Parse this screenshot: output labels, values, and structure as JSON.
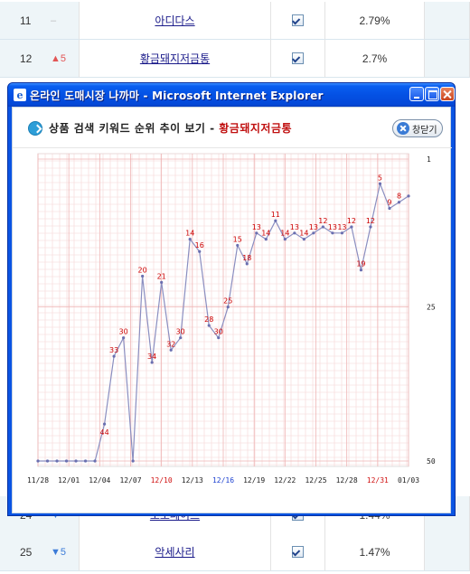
{
  "rank_rows_top": [
    {
      "rank": "11",
      "change": "–",
      "change_dir": "same",
      "keyword": "아디다스",
      "percent": "2.79%"
    },
    {
      "rank": "12",
      "change": "▲5",
      "change_dir": "up",
      "keyword": "황금돼지저금통",
      "percent": "2.7%"
    }
  ],
  "rank_rows_bottom": [
    {
      "rank": "24",
      "change": "▼",
      "change_dir": "down",
      "keyword": "도토페이트",
      "percent": "1.44%"
    },
    {
      "rank": "25",
      "change": "▼5",
      "change_dir": "down",
      "keyword": "악세사리",
      "percent": "1.47%"
    }
  ],
  "window": {
    "title": "온라인 도매시장 나까마 - Microsoft Internet Explorer"
  },
  "popup": {
    "title_prefix": "상품 검색 키워드 순위 추이 보기 - ",
    "title_keyword": "황금돼지저금통",
    "close_label": "창닫기"
  },
  "chart_data": {
    "type": "line",
    "title": "상품 검색 키워드 순위 추이 보기 - 황금돼지저금통",
    "y_axis_inverted": true,
    "ylim": [
      1,
      50
    ],
    "y_ticks": [
      "1",
      "25",
      "50"
    ],
    "x_ticks": [
      {
        "label": "11/28",
        "color": "#222222"
      },
      {
        "label": "12/01",
        "color": "#222222"
      },
      {
        "label": "12/04",
        "color": "#222222"
      },
      {
        "label": "12/07",
        "color": "#222222"
      },
      {
        "label": "12/10",
        "color": "#d01010"
      },
      {
        "label": "12/13",
        "color": "#222222"
      },
      {
        "label": "12/16",
        "color": "#1a3fd0"
      },
      {
        "label": "12/19",
        "color": "#222222"
      },
      {
        "label": "12/22",
        "color": "#222222"
      },
      {
        "label": "12/25",
        "color": "#222222"
      },
      {
        "label": "12/28",
        "color": "#222222"
      },
      {
        "label": "12/31",
        "color": "#d01010"
      },
      {
        "label": "01/03",
        "color": "#222222"
      }
    ],
    "grid": true,
    "series_color": "#8a8ec0",
    "points": [
      {
        "x": 0,
        "y": 50,
        "label": ""
      },
      {
        "x": 1,
        "y": 50,
        "label": ""
      },
      {
        "x": 2,
        "y": 50,
        "label": ""
      },
      {
        "x": 3,
        "y": 50,
        "label": ""
      },
      {
        "x": 4,
        "y": 50,
        "label": ""
      },
      {
        "x": 5,
        "y": 50,
        "label": ""
      },
      {
        "x": 6,
        "y": 50,
        "label": ""
      },
      {
        "x": 7,
        "y": 44,
        "label": "44"
      },
      {
        "x": 8,
        "y": 33,
        "label": "33"
      },
      {
        "x": 9,
        "y": 30,
        "label": "30"
      },
      {
        "x": 10,
        "y": 50,
        "label": ""
      },
      {
        "x": 11,
        "y": 20,
        "label": "20"
      },
      {
        "x": 12,
        "y": 34,
        "label": "34"
      },
      {
        "x": 13,
        "y": 21,
        "label": "21"
      },
      {
        "x": 14,
        "y": 32,
        "label": "32"
      },
      {
        "x": 15,
        "y": 30,
        "label": "30"
      },
      {
        "x": 16,
        "y": 14,
        "label": "14"
      },
      {
        "x": 17,
        "y": 16,
        "label": "16"
      },
      {
        "x": 18,
        "y": 28,
        "label": "28"
      },
      {
        "x": 19,
        "y": 30,
        "label": "30"
      },
      {
        "x": 20,
        "y": 25,
        "label": "25"
      },
      {
        "x": 21,
        "y": 15,
        "label": "15"
      },
      {
        "x": 22,
        "y": 18,
        "label": "18"
      },
      {
        "x": 23,
        "y": 13,
        "label": "13"
      },
      {
        "x": 24,
        "y": 14,
        "label": "14"
      },
      {
        "x": 25,
        "y": 11,
        "label": "11"
      },
      {
        "x": 26,
        "y": 14,
        "label": "14"
      },
      {
        "x": 27,
        "y": 13,
        "label": "13"
      },
      {
        "x": 28,
        "y": 14,
        "label": "14"
      },
      {
        "x": 29,
        "y": 13,
        "label": "13"
      },
      {
        "x": 30,
        "y": 12,
        "label": "12"
      },
      {
        "x": 31,
        "y": 13,
        "label": "13"
      },
      {
        "x": 32,
        "y": 13,
        "label": "13"
      },
      {
        "x": 33,
        "y": 12,
        "label": "12"
      },
      {
        "x": 34,
        "y": 19,
        "label": "19"
      },
      {
        "x": 35,
        "y": 12,
        "label": "12"
      },
      {
        "x": 36,
        "y": 5,
        "label": "5"
      },
      {
        "x": 37,
        "y": 9,
        "label": "9"
      },
      {
        "x": 38,
        "y": 8,
        "label": "8"
      },
      {
        "x": 39,
        "y": 7,
        "label": ""
      }
    ]
  }
}
